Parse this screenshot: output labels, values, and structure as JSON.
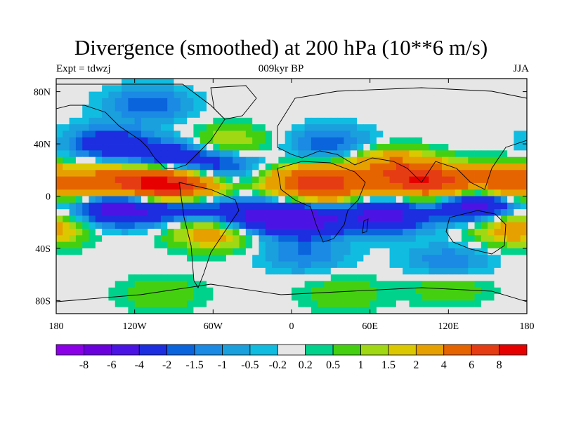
{
  "header": {
    "title": "Divergence (smoothed) at 200 hPa (10**6 m/s)",
    "left_label": "Expt = tdwzj",
    "center_label": "009kyr BP",
    "right_label": "JJA"
  },
  "chart_data": {
    "type": "heatmap",
    "title": "Divergence (smoothed) at 200 hPa (10**6 m/s)",
    "projection": "cylindrical-equidistant",
    "x_range": [
      -180,
      180
    ],
    "y_range": [
      -90,
      90
    ],
    "x_ticks": [
      {
        "value": -180,
        "label": "180"
      },
      {
        "value": -120,
        "label": "120W"
      },
      {
        "value": -60,
        "label": "60W"
      },
      {
        "value": 0,
        "label": "0"
      },
      {
        "value": 60,
        "label": "60E"
      },
      {
        "value": 120,
        "label": "120E"
      },
      {
        "value": 180,
        "label": "180"
      }
    ],
    "y_ticks": [
      {
        "value": 80,
        "label": "80N"
      },
      {
        "value": 40,
        "label": "40N"
      },
      {
        "value": 0,
        "label": "0"
      },
      {
        "value": -40,
        "label": "40S"
      },
      {
        "value": -80,
        "label": "80S"
      }
    ],
    "colorbar": {
      "boundaries": [
        "-8",
        "-6",
        "-4",
        "-2",
        "-1.5",
        "-1",
        "-0.5",
        "-0.2",
        "0.2",
        "0.5",
        "1",
        "1.5",
        "2",
        "4",
        "6",
        "8"
      ],
      "colors": [
        "#8c00e8",
        "#6a00dc",
        "#4c14e4",
        "#1c2ee0",
        "#0a64dc",
        "#1a8ae4",
        "#1aa0dc",
        "#10bce0",
        "#e6e6e6",
        "#00d28c",
        "#44d010",
        "#a0d814",
        "#dcc800",
        "#e6a000",
        "#e66400",
        "#e63c14",
        "#e60000"
      ]
    },
    "centers": [
      {
        "lon": -100,
        "lat": 8,
        "value": 9
      },
      {
        "lon": -140,
        "lat": 10,
        "value": 4
      },
      {
        "lon": -168,
        "lat": 10,
        "value": 2
      },
      {
        "lon": -75,
        "lat": 2,
        "value": 4
      },
      {
        "lon": 10,
        "lat": 10,
        "value": 5
      },
      {
        "lon": 35,
        "lat": 8,
        "value": 4
      },
      {
        "lon": 90,
        "lat": 15,
        "value": 5
      },
      {
        "lon": 115,
        "lat": 8,
        "value": 5
      },
      {
        "lon": 160,
        "lat": 10,
        "value": 5
      },
      {
        "lon": 72,
        "lat": 25,
        "value": 2.5
      },
      {
        "lon": -60,
        "lat": -28,
        "value": 3
      },
      {
        "lon": 170,
        "lat": -25,
        "value": 3
      },
      {
        "lon": -50,
        "lat": 40,
        "value": 2
      },
      {
        "lon": -130,
        "lat": -8,
        "value": -6
      },
      {
        "lon": -80,
        "lat": -5,
        "value": -5
      },
      {
        "lon": -30,
        "lat": -15,
        "value": -4
      },
      {
        "lon": 10,
        "lat": -18,
        "value": -5
      },
      {
        "lon": 70,
        "lat": -15,
        "value": -5
      },
      {
        "lon": 140,
        "lat": -5,
        "value": -6
      },
      {
        "lon": -140,
        "lat": 40,
        "value": -3
      },
      {
        "lon": -95,
        "lat": 30,
        "value": -3
      },
      {
        "lon": -55,
        "lat": 25,
        "value": -2.5
      },
      {
        "lon": 30,
        "lat": 40,
        "value": -2
      },
      {
        "lon": -110,
        "lat": 70,
        "value": -2
      },
      {
        "lon": 10,
        "lat": -45,
        "value": -1.5
      },
      {
        "lon": 120,
        "lat": -50,
        "value": -1.5
      },
      {
        "lon": 40,
        "lat": -75,
        "value": 1
      },
      {
        "lon": 120,
        "lat": -70,
        "value": 1
      },
      {
        "lon": -100,
        "lat": -75,
        "value": 1
      }
    ]
  }
}
